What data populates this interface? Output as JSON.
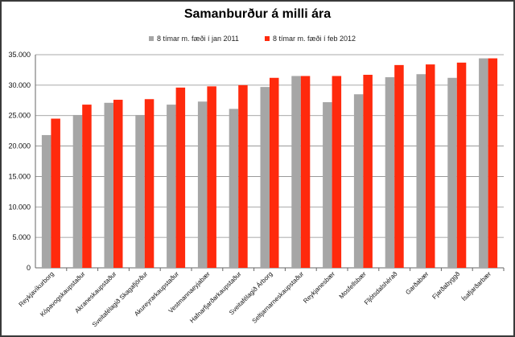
{
  "chart_data": {
    "type": "bar",
    "title": "Samanburður á milli ára",
    "xlabel": "",
    "ylabel": "",
    "ylim": [
      0,
      35000
    ],
    "y_ticks": [
      "0",
      "5.000",
      "10.000",
      "15.000",
      "20.000",
      "25.000",
      "30.000",
      "35.000"
    ],
    "grid": true,
    "legend_position": "top",
    "categories": [
      "Reykjavíkurborg",
      "Kópavogskaupstaður",
      "Akraneskaupstaður",
      "Sveitafélagið Skagafjörður",
      "Akureyrarkaupstaður",
      "Vestmannaeyjabær",
      "Hafnarfjarðarkaupstaður",
      "Sveitafélagið Árborg",
      "Seltjarnarneskaupstaður",
      "Reykjanesbær",
      "Mosfellsbær",
      "Fljótsdalshérað",
      "Garðabær",
      "Fjarðabyggð",
      "Ísafjarðarbær"
    ],
    "series": [
      {
        "name": "8 tímar m. fæði í jan 2011",
        "color": "#a6a6a6",
        "values": [
          21800,
          25100,
          27100,
          25100,
          26800,
          27300,
          26100,
          29700,
          31500,
          27200,
          28500,
          31300,
          31800,
          31200,
          34400
        ]
      },
      {
        "name": "8 tímar m. fæði í feb 2012",
        "color": "#ff2a0d",
        "values": [
          24500,
          26800,
          27600,
          27700,
          29600,
          29800,
          30000,
          31200,
          31500,
          31500,
          31700,
          33300,
          33400,
          33700,
          34400
        ]
      }
    ]
  }
}
